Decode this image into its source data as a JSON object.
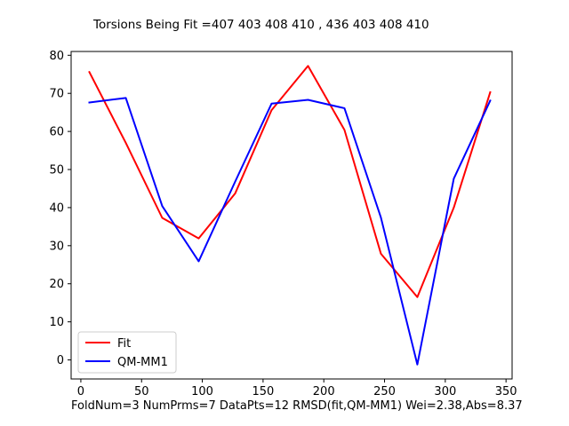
{
  "chart_data": {
    "type": "line",
    "title": "Torsions Being Fit =407 403 408 410 , 436 403 408 410",
    "footer": "FoldNum=3 NumPrms=7 DataPts=12 RMSD(fit,QM-MM1) Wei=2.38,Abs=8.37",
    "xlabel": "",
    "ylabel": "",
    "xlim": [
      -8,
      355
    ],
    "ylim": [
      -5,
      81
    ],
    "xticks": [
      0,
      50,
      100,
      150,
      200,
      250,
      300,
      350
    ],
    "yticks": [
      0,
      10,
      20,
      30,
      40,
      50,
      60,
      70,
      80
    ],
    "x": [
      7,
      37,
      67,
      97,
      127,
      157,
      187,
      217,
      247,
      277,
      307,
      337
    ],
    "series": [
      {
        "name": "Fit",
        "color": "#ff0000",
        "values": [
          75.6,
          57.0,
          37.3,
          31.9,
          43.7,
          65.6,
          77.2,
          60.4,
          27.9,
          16.5,
          40.0,
          70.3
        ]
      },
      {
        "name": "QM-MM1",
        "color": "#0000ff",
        "values": [
          67.6,
          68.8,
          40.4,
          25.9,
          46.8,
          67.3,
          68.3,
          66.1,
          37.4,
          -1.2,
          47.6,
          68.1
        ]
      }
    ],
    "grid": false,
    "legend_position": "lower-left"
  }
}
